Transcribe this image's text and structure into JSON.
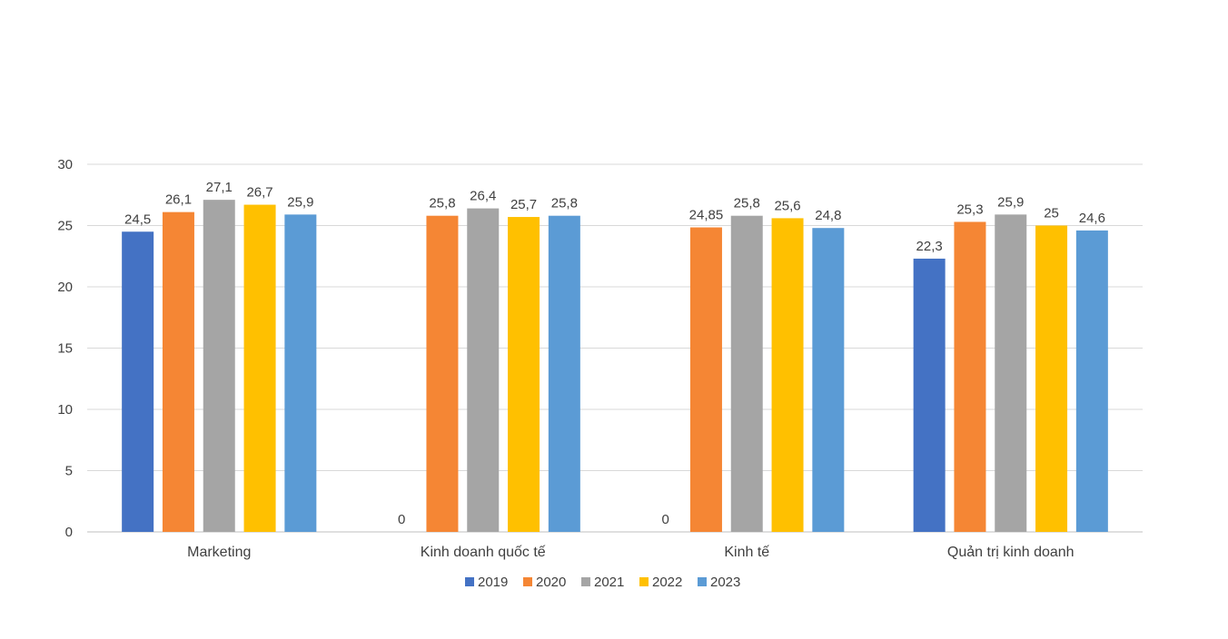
{
  "chart_data": {
    "type": "bar",
    "categories": [
      "Marketing",
      "Kinh doanh quốc tế",
      "Kinh tế",
      "Quản trị kinh doanh"
    ],
    "series": [
      {
        "name": "2019",
        "color": "#4472c4",
        "values": [
          24.5,
          0,
          0,
          22.3
        ],
        "labels": [
          "24,5",
          "0",
          "0",
          "22,3"
        ]
      },
      {
        "name": "2020",
        "color": "#f58634",
        "values": [
          26.1,
          25.8,
          24.85,
          25.3
        ],
        "labels": [
          "26,1",
          "25,8",
          "24,85",
          "25,3"
        ]
      },
      {
        "name": "2021",
        "color": "#a5a5a5",
        "values": [
          27.1,
          26.4,
          25.8,
          25.9
        ],
        "labels": [
          "27,1",
          "26,4",
          "25,8",
          "25,9"
        ]
      },
      {
        "name": "2022",
        "color": "#ffc000",
        "values": [
          26.7,
          25.7,
          25.6,
          25
        ],
        "labels": [
          "26,7",
          "25,7",
          "25,6",
          "25"
        ]
      },
      {
        "name": "2023",
        "color": "#5b9bd5",
        "values": [
          25.9,
          25.8,
          24.8,
          24.6
        ],
        "labels": [
          "25,9",
          "25,8",
          "24,8",
          "24,6"
        ]
      }
    ],
    "ylim": [
      0,
      30
    ],
    "yticks": [
      "0",
      "5",
      "10",
      "15",
      "20",
      "25",
      "30"
    ],
    "grid": true,
    "legend": "bottom"
  }
}
